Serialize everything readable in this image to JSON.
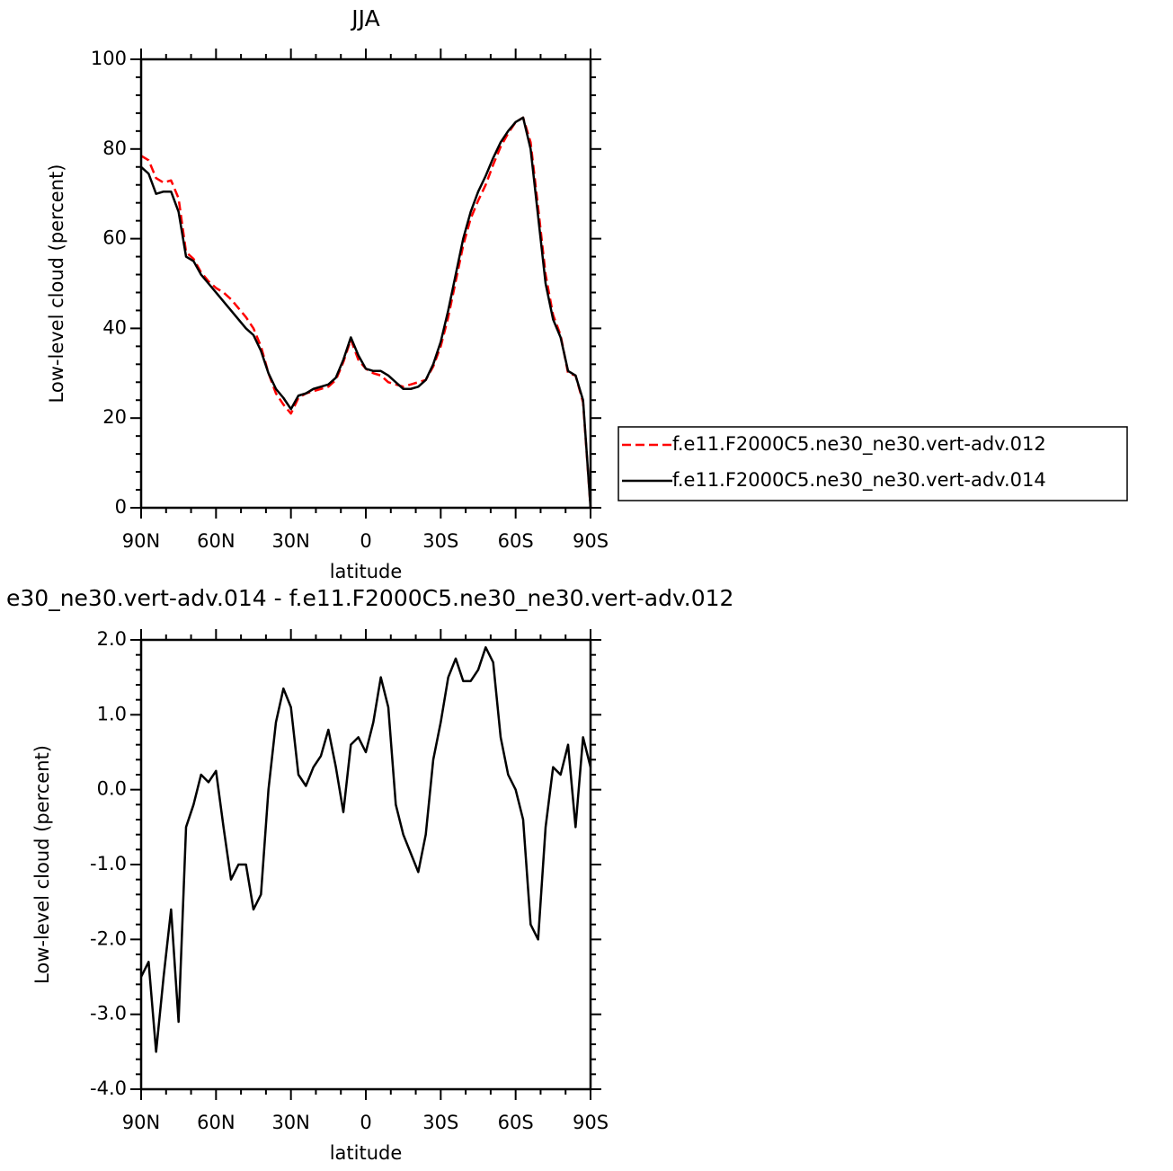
{
  "chart_data": [
    {
      "type": "line",
      "title": "JJA",
      "xlabel": "latitude",
      "ylabel": "Low-level cloud (percent)",
      "x": [
        90,
        87,
        84,
        81,
        78,
        75,
        72,
        69,
        66,
        63,
        60,
        57,
        54,
        51,
        48,
        45,
        42,
        39,
        36,
        33,
        30,
        27,
        24,
        21,
        18,
        15,
        12,
        9,
        6,
        3,
        0,
        -3,
        -6,
        -9,
        -12,
        -15,
        -18,
        -21,
        -24,
        -27,
        -30,
        -33,
        -36,
        -39,
        -42,
        -45,
        -48,
        -51,
        -54,
        -57,
        -60,
        -63,
        -66,
        -69,
        -72,
        -75,
        -78,
        -81,
        -84,
        -87,
        -90
      ],
      "xlim": [
        90,
        -90
      ],
      "xticks": [
        {
          "value": 90,
          "label": "90N"
        },
        {
          "value": 60,
          "label": "60N"
        },
        {
          "value": 30,
          "label": "30N"
        },
        0,
        {
          "value": -30,
          "label": "30S"
        },
        {
          "value": -60,
          "label": "60S"
        },
        {
          "value": -90,
          "label": "90S"
        }
      ],
      "ylim": [
        0,
        100
      ],
      "yticks": [
        0,
        20,
        40,
        60,
        80,
        100
      ],
      "legend": "right",
      "series": [
        {
          "name": "f.e11.F2000C5.ne30_ne30.vert-adv.012",
          "color": "#ff0000",
          "line_style": "dashed",
          "values": [
            78.5,
            77.5,
            73.5,
            72.5,
            73,
            69,
            57,
            55.5,
            52.5,
            50.5,
            49,
            48,
            46.5,
            44.5,
            42.5,
            40,
            36,
            30,
            25.5,
            23,
            21,
            24.5,
            25.5,
            26,
            26.5,
            27,
            28.5,
            32.5,
            37.5,
            33,
            31,
            30,
            29.5,
            28,
            27.5,
            27,
            27.5,
            28,
            28.5,
            31.5,
            36,
            42.5,
            50.5,
            58.5,
            64.5,
            68.5,
            72,
            76.5,
            80.5,
            83.5,
            86,
            87,
            81.5,
            67,
            52,
            43,
            38.5,
            30,
            29.5,
            23.5,
            0
          ]
        },
        {
          "name": "f.e11.F2000C5.ne30_ne30.vert-adv.014",
          "color": "#000000",
          "line_style": "solid",
          "values": [
            76,
            74.5,
            70,
            70.5,
            70.5,
            66,
            56,
            55,
            52,
            50,
            48,
            46,
            44,
            42,
            40,
            38.5,
            35,
            30,
            26.5,
            24.5,
            22,
            25,
            25.5,
            26.5,
            27,
            27.5,
            29,
            33,
            38,
            34,
            31,
            30.5,
            30.5,
            29.5,
            28,
            26.5,
            26.5,
            27,
            28.5,
            32,
            37,
            44,
            52,
            60,
            66,
            70.5,
            74,
            78,
            81.5,
            84,
            86,
            87,
            80,
            65,
            50,
            42,
            38,
            30.5,
            29.5,
            24,
            0
          ]
        }
      ]
    },
    {
      "type": "line",
      "title": "e30_ne30.vert-adv.014 - f.e11.F2000C5.ne30_ne30.vert-adv.012",
      "xlabel": "latitude",
      "ylabel": "Low-level cloud (percent)",
      "x": [
        90,
        87,
        84,
        81,
        78,
        75,
        72,
        69,
        66,
        63,
        60,
        57,
        54,
        51,
        48,
        45,
        42,
        39,
        36,
        33,
        30,
        27,
        24,
        21,
        18,
        15,
        12,
        9,
        6,
        3,
        0,
        -3,
        -6,
        -9,
        -12,
        -15,
        -18,
        -21,
        -24,
        -27,
        -30,
        -33,
        -36,
        -39,
        -42,
        -45,
        -48,
        -51,
        -54,
        -57,
        -60,
        -63,
        -66,
        -69,
        -72,
        -75,
        -78,
        -81,
        -84,
        -87,
        -90
      ],
      "xlim": [
        90,
        -90
      ],
      "xticks": [
        {
          "value": 90,
          "label": "90N"
        },
        {
          "value": 60,
          "label": "60N"
        },
        {
          "value": 30,
          "label": "30N"
        },
        0,
        {
          "value": -30,
          "label": "30S"
        },
        {
          "value": -60,
          "label": "60S"
        },
        {
          "value": -90,
          "label": "90S"
        }
      ],
      "ylim": [
        -4,
        2
      ],
      "yticks": [
        {
          "value": -4,
          "label": "-4.0"
        },
        {
          "value": -3,
          "label": "-3.0"
        },
        {
          "value": -2,
          "label": "-2.0"
        },
        {
          "value": -1,
          "label": "-1.0"
        },
        {
          "value": 0,
          "label": "0.0"
        },
        {
          "value": 1,
          "label": "1.0"
        },
        {
          "value": 2,
          "label": "2.0"
        }
      ],
      "series": [
        {
          "color": "#000000",
          "line_style": "solid",
          "values": [
            -2.5,
            -2.3,
            -3.5,
            -2.5,
            -1.6,
            -3.1,
            -0.5,
            -0.2,
            0.2,
            0.1,
            0.25,
            -0.5,
            -1.2,
            -1.0,
            -1.0,
            -1.6,
            -1.4,
            0.0,
            0.9,
            1.35,
            1.1,
            0.2,
            0.05,
            0.3,
            0.45,
            0.8,
            0.3,
            -0.3,
            0.6,
            0.7,
            0.5,
            0.9,
            1.5,
            1.1,
            -0.2,
            -0.6,
            -0.85,
            -1.1,
            -0.6,
            0.4,
            0.9,
            1.5,
            1.75,
            1.45,
            1.45,
            1.6,
            1.9,
            1.7,
            0.7,
            0.2,
            0.0,
            -0.4,
            -1.8,
            -2.0,
            -0.5,
            0.3,
            0.2,
            0.6,
            -0.5,
            0.7,
            0.3
          ]
        }
      ]
    }
  ]
}
